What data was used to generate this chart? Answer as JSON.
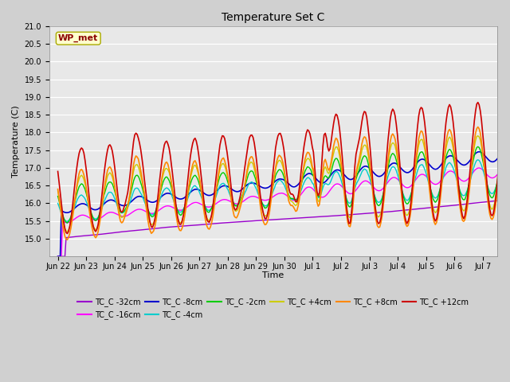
{
  "title": "Temperature Set C",
  "xlabel": "Time",
  "ylabel": "Temperature (C)",
  "ylim": [
    14.5,
    21.0
  ],
  "yticks": [
    15.0,
    15.5,
    16.0,
    16.5,
    17.0,
    17.5,
    18.0,
    18.5,
    19.0,
    19.5,
    20.0,
    20.5,
    21.0
  ],
  "x_labels": [
    "Jun 22",
    "Jun 23",
    "Jun 24",
    "Jun 25",
    "Jun 26",
    "Jun 27",
    "Jun 28",
    "Jun 29",
    "Jun 30",
    "Jul 1",
    "Jul 2",
    "Jul 3",
    "Jul 4",
    "Jul 5",
    "Jul 6",
    "Jul 7"
  ],
  "wp_met_label": "WP_met",
  "fig_bg": "#d0d0d0",
  "ax_bg": "#e8e8e8",
  "grid_color": "#ffffff",
  "series": [
    {
      "label": "TC_C -32cm",
      "color": "#9900cc",
      "lw": 1.0
    },
    {
      "label": "TC_C -16cm",
      "color": "#ff00ff",
      "lw": 1.0
    },
    {
      "label": "TC_C -8cm",
      "color": "#0000cc",
      "lw": 1.2
    },
    {
      "label": "TC_C -4cm",
      "color": "#00cccc",
      "lw": 1.0
    },
    {
      "label": "TC_C -2cm",
      "color": "#00cc00",
      "lw": 1.0
    },
    {
      "label": "TC_C +4cm",
      "color": "#cccc00",
      "lw": 1.0
    },
    {
      "label": "TC_C +8cm",
      "color": "#ff8800",
      "lw": 1.2
    },
    {
      "label": "TC_C +12cm",
      "color": "#cc0000",
      "lw": 1.2
    }
  ]
}
